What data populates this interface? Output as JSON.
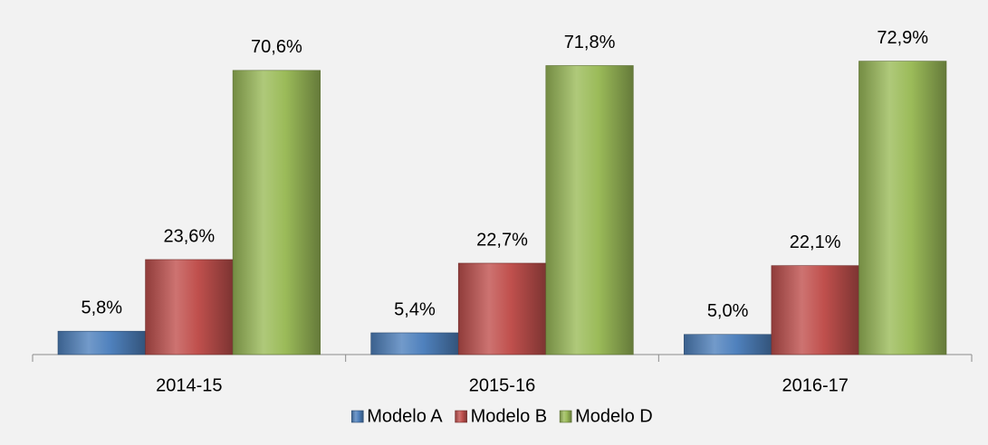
{
  "chart_data": {
    "type": "bar",
    "categories": [
      "2014-15",
      "2015-16",
      "2016-17"
    ],
    "series": [
      {
        "name": "Modelo A",
        "color": "#4f81bd",
        "values": [
          5.8,
          5.4,
          5.0
        ],
        "value_labels": [
          "5,8%",
          "5,4%",
          "5,0%"
        ]
      },
      {
        "name": "Modelo B",
        "color": "#c0504d",
        "values": [
          23.6,
          22.7,
          22.1
        ],
        "value_labels": [
          "23,6%",
          "22,7%",
          "22,1%"
        ]
      },
      {
        "name": "Modelo D",
        "color": "#9bbb59",
        "values": [
          70.6,
          71.8,
          72.9
        ],
        "value_labels": [
          "70,6%",
          "71,8%",
          "72,9%"
        ]
      }
    ],
    "ylim": [
      0,
      80
    ],
    "legend": "bottom"
  }
}
